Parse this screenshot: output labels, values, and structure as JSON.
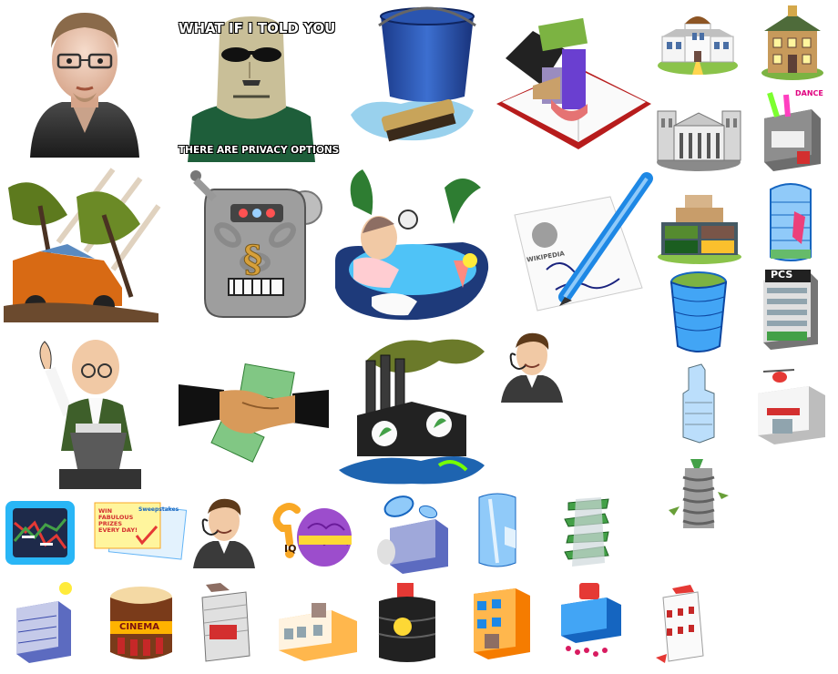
{
  "meme": {
    "top_text": "WHAT IF I TOLD YOU",
    "bottom_text": "THERE ARE PRIVACY OPTIONS"
  },
  "labels": {
    "dance": "DANCE",
    "pcs": "PCS",
    "wikipedia": "WIKIPEDIA",
    "sweepstakes_title": "WIN FABULOUS PRIZES EVERY DAY!",
    "sweepstakes_ticket": "Sweepstakes",
    "iq": "IQ",
    "cinema": "CINEMA"
  },
  "icons": [
    "bearded-man-avatar-icon",
    "matrix-meme-icon",
    "bucket-brush-icon",
    "finance-book-chart-icon",
    "white-mansion-icon",
    "old-house-icon",
    "museum-icon",
    "dance-club-icon",
    "storm-car-icon",
    "chained-robot-icon",
    "hot-tub-man-icon",
    "wikipedia-pen-icon",
    "container-stack-icon",
    "glass-tower-icon",
    "round-tower-icon",
    "pcs-office-icon",
    "lecturer-icon",
    "money-handshake-icon",
    "polluting-factory-icon",
    "support-agent-icon",
    "skyscraper-icon",
    "helipad-store-icon",
    "spiral-tower-icon",
    "stock-chart-icon",
    "sweepstakes-icon",
    "support-agent-small-icon",
    "iq-brain-icon",
    "satellite-dish-building-icon",
    "blue-tower-icon",
    "twisted-tower-icon",
    "bank-building-icon",
    "cinema-icon",
    "music-tower-icon",
    "toy-factory-icon",
    "arcade-tower-icon",
    "apartment-block-icon",
    "tech-building-icon",
    "star-tower-icon"
  ]
}
